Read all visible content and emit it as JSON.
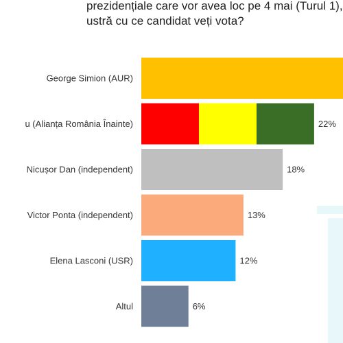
{
  "question": {
    "line1": "prezidențiale care vor avea loc pe 4 mai (Turul 1),",
    "line2": "ustră cu ce candidat veți vota?"
  },
  "colors": {
    "simion": "#ffc000",
    "antonescu_red": "#ff0000",
    "antonescu_yellow": "#ffff00",
    "antonescu_green": "#3a6e26",
    "dan": "#bfbfbf",
    "ponta": "#fbaa7b",
    "lasconi": "#1fb1ff",
    "altul": "#6f7f98"
  },
  "chart_data": {
    "type": "bar",
    "orientation": "horizontal",
    "categories": [
      "George Simion (AUR)",
      "u (Alianța România Înainte)",
      "Nicușor Dan (independent)",
      "Victor Ponta (independent)",
      "Elena Lasconi (USR)",
      "Altul"
    ],
    "values": [
      null,
      22,
      18,
      13,
      12,
      6
    ],
    "value_labels": [
      "",
      "22%",
      "18%",
      "13%",
      "12%",
      "6%"
    ],
    "bar_colors": [
      "#ffc000",
      "tricolor",
      "#bfbfbf",
      "#fbaa7b",
      "#1fb1ff",
      "#6f7f98"
    ],
    "tricolor": [
      "#ff0000",
      "#ffff00",
      "#3a6e26"
    ],
    "grid": false,
    "legend": "none"
  }
}
